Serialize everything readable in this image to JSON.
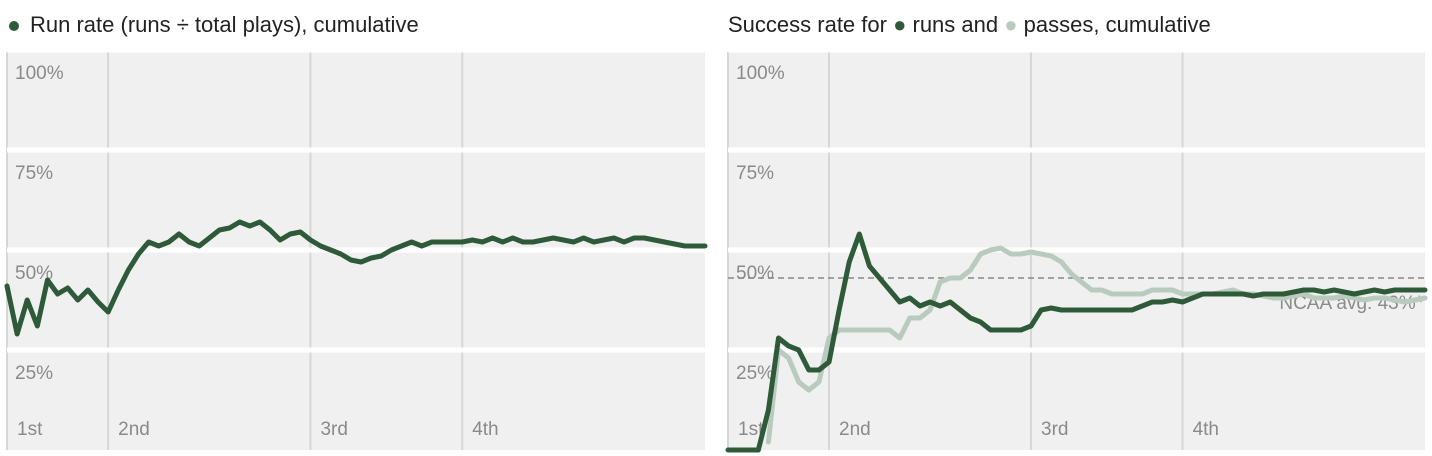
{
  "chart_data": [
    {
      "type": "line",
      "title": "Run rate (runs ÷ total plays), cumulative",
      "x": [
        0,
        1,
        2,
        3,
        4,
        5,
        6,
        7,
        8,
        9,
        10,
        11,
        12,
        13,
        14,
        15,
        16,
        17,
        18,
        19,
        20,
        21,
        22,
        23,
        24,
        25,
        26,
        27,
        28,
        29,
        30,
        31,
        32,
        33,
        34,
        35,
        36,
        37,
        38,
        39,
        40,
        41,
        42,
        43,
        44,
        45,
        46,
        47,
        48,
        49,
        50,
        51,
        52,
        53,
        54,
        55,
        56,
        57,
        58,
        59,
        60,
        61,
        62,
        63,
        64,
        65,
        66,
        67,
        68,
        69
      ],
      "series": [
        {
          "name": "Run rate",
          "color": "#2e5a3a",
          "values": [
            41,
            29,
            37.5,
            31,
            42.5,
            39,
            40.5,
            37.5,
            40,
            37,
            34.5,
            40,
            45,
            49,
            52,
            51,
            52,
            54,
            52,
            51,
            53,
            55,
            55.5,
            57,
            56,
            57,
            55,
            52.5,
            54,
            54.5,
            52.5,
            51,
            50,
            49,
            47.5,
            47,
            48,
            48.5,
            50,
            51,
            52,
            51,
            52,
            52,
            52,
            52,
            52.5,
            52,
            53,
            52,
            53,
            52,
            52,
            52.5,
            53,
            52.5,
            52,
            53,
            52,
            52.5,
            53,
            52,
            53,
            53,
            52.5,
            52,
            51.5,
            51,
            51,
            51
          ]
        }
      ],
      "xlim": [
        0,
        69
      ],
      "xticks": [
        {
          "value": 0,
          "label": "1st"
        },
        {
          "value": 10,
          "label": "2nd"
        },
        {
          "value": 30,
          "label": "3rd"
        },
        {
          "value": 45,
          "label": "4th"
        }
      ],
      "ylim": [
        0,
        100
      ],
      "yticks": [
        {
          "value": 25,
          "label": "25%"
        },
        {
          "value": 50,
          "label": "50%"
        },
        {
          "value": 75,
          "label": "75%"
        },
        {
          "value": 100,
          "label": "100%"
        }
      ],
      "grid": true
    },
    {
      "type": "line",
      "title_parts": [
        "Success rate for",
        "runs and",
        "passes, cumulative"
      ],
      "x": [
        0,
        1,
        2,
        3,
        4,
        5,
        6,
        7,
        8,
        9,
        10,
        11,
        12,
        13,
        14,
        15,
        16,
        17,
        18,
        19,
        20,
        21,
        22,
        23,
        24,
        25,
        26,
        27,
        28,
        29,
        30,
        31,
        32,
        33,
        34,
        35,
        36,
        37,
        38,
        39,
        40,
        41,
        42,
        43,
        44,
        45,
        46,
        47,
        48,
        49,
        50,
        51,
        52,
        53,
        54,
        55,
        56,
        57,
        58,
        59,
        60,
        61,
        62,
        63,
        64,
        65,
        66,
        67,
        68,
        69
      ],
      "series": [
        {
          "name": "passes",
          "color": "#b9cabe",
          "values": [
            null,
            null,
            null,
            null,
            2,
            25,
            23,
            17,
            15,
            17,
            28,
            30,
            30,
            30,
            30,
            30,
            30,
            28,
            33,
            33,
            35,
            42,
            43,
            43,
            45,
            49,
            50,
            50.5,
            49,
            49,
            49.5,
            49,
            48.5,
            47,
            44,
            42,
            40,
            40,
            39,
            39,
            39,
            39,
            40,
            40,
            40,
            39,
            39,
            39,
            39,
            39.5,
            40,
            39,
            39,
            38.5,
            38,
            38,
            38.5,
            39,
            38,
            38,
            38,
            38.5,
            38,
            37.5,
            38,
            38,
            37.5,
            37,
            37.5,
            38
          ]
        },
        {
          "name": "runs",
          "color": "#2e5a3a",
          "values": [
            0,
            0,
            0,
            0,
            10,
            28,
            26,
            25,
            20,
            20,
            22,
            35,
            47,
            54,
            46,
            43,
            40,
            37,
            38,
            36,
            37,
            36,
            37,
            35,
            33,
            32,
            30,
            30,
            30,
            30,
            31,
            35,
            35.5,
            35,
            35,
            35,
            35,
            35,
            35,
            35,
            35,
            36,
            37,
            37,
            37.5,
            37,
            38,
            39,
            39,
            39,
            39,
            39,
            38.5,
            39,
            39,
            39,
            39.5,
            40,
            40,
            39.5,
            40,
            39.5,
            39,
            39.5,
            40,
            39.5,
            40,
            40,
            40,
            40
          ]
        }
      ],
      "reference_line": {
        "value": 43,
        "label": "NCAA avg: 43%*"
      },
      "xlim": [
        0,
        69
      ],
      "xticks": [
        {
          "value": 0,
          "label": "1st"
        },
        {
          "value": 10,
          "label": "2nd"
        },
        {
          "value": 30,
          "label": "3rd"
        },
        {
          "value": 45,
          "label": "4th"
        }
      ],
      "ylim": [
        0,
        100
      ],
      "yticks": [
        {
          "value": 25,
          "label": "25%"
        },
        {
          "value": 50,
          "label": "50%"
        },
        {
          "value": 75,
          "label": "75%"
        },
        {
          "value": 100,
          "label": "100%"
        }
      ],
      "grid": true
    }
  ]
}
